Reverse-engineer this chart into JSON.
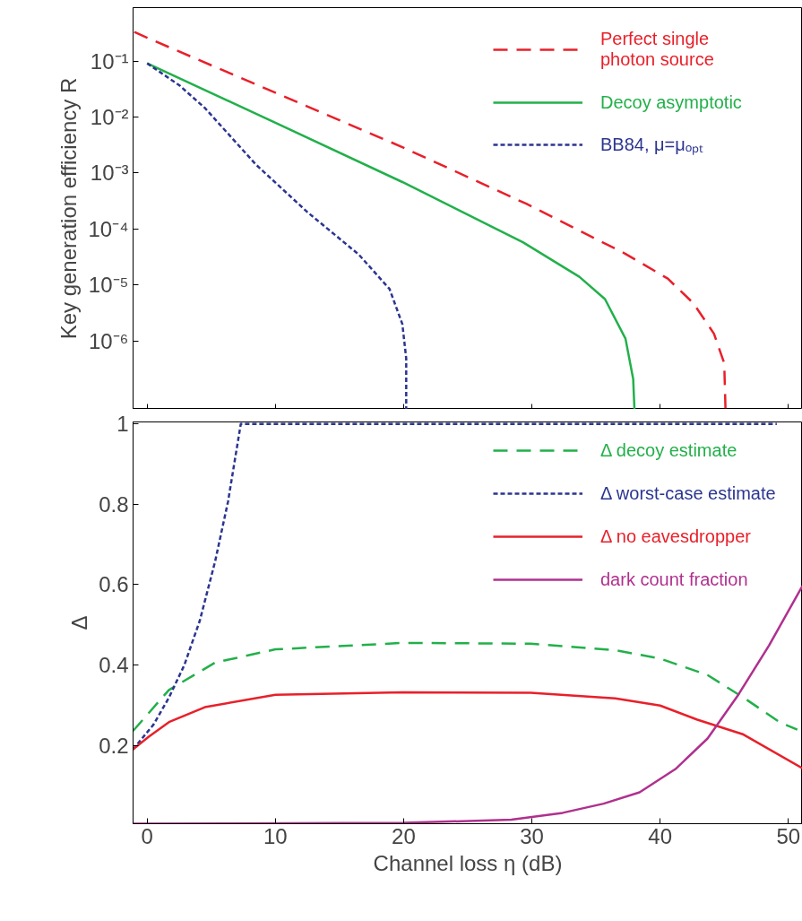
{
  "chart_data": [
    {
      "type": "line",
      "ylabel": "Key generation efficiency R",
      "log": "y",
      "xlim": [
        -1.1,
        51.1
      ],
      "ylim": [
        6e-08,
        0.9
      ],
      "xticks": [
        0,
        10,
        20,
        30,
        40,
        50
      ],
      "yticks": [
        {
          "value": 0.1,
          "label": "10⁻¹"
        },
        {
          "value": 0.01,
          "label": "10⁻²"
        },
        {
          "value": 0.001,
          "label": "10⁻³"
        },
        {
          "value": 0.0001,
          "label": "10⁻⁴"
        },
        {
          "value": 1e-05,
          "label": "10⁻⁵"
        },
        {
          "value": 1e-06,
          "label": "10⁻⁶"
        }
      ],
      "tick_labels": "y",
      "grid": false,
      "legend": "top right",
      "series": [
        {
          "name": "Perfect single\nphoton source",
          "color": "#e8202a",
          "line_style": "dashed",
          "x": [
            -1.0,
            0,
            19.9,
            29.6,
            37.3,
            40.6,
            42.6,
            44.2,
            45.0,
            45.1
          ],
          "values": [
            0.33,
            0.26,
            0.0029,
            0.00028,
            3.6e-05,
            1.3e-05,
            4.7e-06,
            1.35e-06,
            4e-07,
            6e-08
          ]
        },
        {
          "name": "Decoy asymptotic",
          "color": "#22b04a",
          "line_style": "solid",
          "x": [
            0,
            10,
            19.9,
            29.3,
            33.7,
            35.7,
            37.3,
            37.9,
            38.0
          ],
          "values": [
            0.091,
            0.0079,
            0.00069,
            5.8e-05,
            1.4e-05,
            5.6e-06,
            1.1e-06,
            2.1e-07,
            6e-08
          ]
        },
        {
          "name": "BB84, μ=μₒₚₜ",
          "color": "#2b3590",
          "line_style": "dotted",
          "x": [
            0,
            2.5,
            4.5,
            8.5,
            12.5,
            16.5,
            18.9,
            19.9,
            20.2,
            20.2
          ],
          "values": [
            0.091,
            0.037,
            0.0145,
            0.0014,
            0.0002,
            3.5e-05,
            8.5e-06,
            2e-06,
            4.9e-07,
            6e-08
          ]
        }
      ]
    },
    {
      "type": "line",
      "xlabel": "Channel loss η (dB)",
      "ylabel": "Δ",
      "xlim": [
        -1.1,
        51.1
      ],
      "ylim": [
        0.005,
        1.005
      ],
      "xticks": [
        0,
        10,
        20,
        30,
        40,
        50
      ],
      "yticks": [
        0.2,
        0.4,
        0.6,
        0.8,
        1
      ],
      "grid": false,
      "legend": "top right",
      "series": [
        {
          "name": "Δ decoy estimate",
          "color": "#22b04a",
          "line_style": "dashed",
          "x": [
            -1.1,
            1.7,
            5.3,
            10.0,
            19.9,
            29.9,
            36.5,
            40.0,
            43.7,
            46.5,
            49.3,
            50.7
          ],
          "values": [
            0.236,
            0.338,
            0.406,
            0.439,
            0.455,
            0.453,
            0.437,
            0.416,
            0.375,
            0.319,
            0.258,
            0.239
          ]
        },
        {
          "name": "Δ worst-case estimate",
          "color": "#2b3590",
          "line_style": "dotted",
          "x": [
            -1.1,
            0.5,
            1.7,
            2.9,
            4.1,
            5.3,
            6.3,
            7.3,
            49.1
          ],
          "values": [
            0.19,
            0.252,
            0.319,
            0.4,
            0.51,
            0.658,
            0.806,
            1,
            1
          ]
        },
        {
          "name": "Δ no eavesdropper",
          "color": "#e8202a",
          "line_style": "solid",
          "x": [
            -1.1,
            0.1,
            1.7,
            4.5,
            10.0,
            19.9,
            29.9,
            36.5,
            40.0,
            42.9,
            46.5,
            51.1
          ],
          "values": [
            0.19,
            0.221,
            0.258,
            0.295,
            0.326,
            0.332,
            0.331,
            0.317,
            0.299,
            0.264,
            0.227,
            0.143
          ]
        },
        {
          "name": "dark count fraction",
          "color": "#b0308e",
          "line_style": "solid",
          "x": [
            -1.1,
            20,
            28.4,
            32.4,
            35.6,
            38.4,
            41.2,
            43.7,
            46.1,
            48.5,
            51.1
          ],
          "values": [
            0.005,
            0.007,
            0.015,
            0.032,
            0.055,
            0.083,
            0.141,
            0.217,
            0.326,
            0.449,
            0.597
          ]
        }
      ]
    }
  ]
}
